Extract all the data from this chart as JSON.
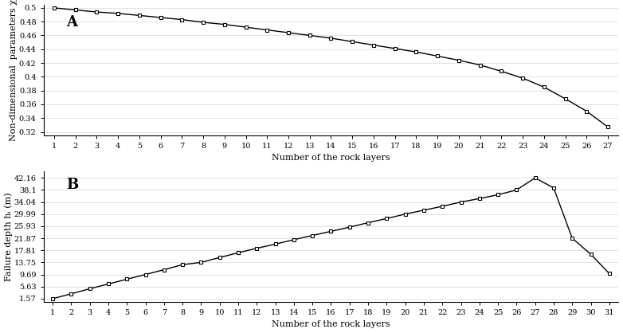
{
  "chart_A": {
    "label": "A",
    "x": [
      1,
      2,
      3,
      4,
      5,
      6,
      7,
      8,
      9,
      10,
      11,
      12,
      13,
      14,
      15,
      16,
      17,
      18,
      19,
      20,
      21,
      22,
      23,
      24,
      25,
      26,
      27
    ],
    "y": [
      0.5,
      0.497,
      0.494,
      0.492,
      0.489,
      0.486,
      0.483,
      0.479,
      0.476,
      0.472,
      0.468,
      0.464,
      0.46,
      0.456,
      0.451,
      0.446,
      0.441,
      0.436,
      0.43,
      0.424,
      0.417,
      0.408,
      0.398,
      0.385,
      0.368,
      0.35,
      0.327
    ],
    "xlabel": "Number of the rock layers",
    "ylabel": "Non-dimensional  parameters χ",
    "ytick_vals": [
      0.32,
      0.34,
      0.36,
      0.38,
      0.4,
      0.42,
      0.44,
      0.46,
      0.48,
      0.5
    ],
    "ytick_labels": [
      "0.32",
      "0.34",
      "0.36",
      "0.38",
      "0.4",
      "0.42",
      "0.44",
      "0.46",
      "0.48",
      "0.5"
    ],
    "ylim": [
      0.315,
      0.505
    ],
    "xticks": [
      1,
      2,
      3,
      4,
      5,
      6,
      7,
      8,
      9,
      10,
      11,
      12,
      13,
      14,
      15,
      16,
      17,
      18,
      19,
      20,
      21,
      22,
      23,
      24,
      25,
      26,
      27
    ],
    "xlim": [
      0.5,
      27.5
    ]
  },
  "chart_B": {
    "label": "B",
    "x": [
      1,
      2,
      3,
      4,
      5,
      6,
      7,
      8,
      9,
      10,
      11,
      12,
      13,
      14,
      15,
      16,
      17,
      18,
      19,
      20,
      21,
      22,
      23,
      24,
      25,
      26,
      27,
      28,
      29,
      30,
      31
    ],
    "y": [
      1.57,
      3.2,
      4.9,
      6.5,
      8.1,
      9.69,
      11.3,
      13.0,
      13.75,
      15.4,
      17.0,
      18.5,
      19.9,
      21.4,
      22.8,
      24.2,
      25.6,
      27.1,
      28.5,
      29.99,
      31.3,
      32.6,
      34.04,
      35.2,
      36.5,
      38.1,
      42.16,
      38.8,
      21.87,
      16.5,
      10.0
    ],
    "xlabel": "Number of the rock layers",
    "ylabel": "Failure depth hᵢ (m)",
    "ytick_vals": [
      1.57,
      5.63,
      9.69,
      13.75,
      17.81,
      21.87,
      25.93,
      29.99,
      34.04,
      38.1,
      42.16
    ],
    "ytick_labels": [
      "1.57",
      "5.63",
      "9.69",
      "13.75",
      "17.81",
      "21.87",
      "25.93",
      "29.99",
      "34.04",
      "38.1",
      "42.16"
    ],
    "ylim": [
      0.5,
      44.5
    ],
    "xticks": [
      1,
      2,
      3,
      4,
      5,
      6,
      7,
      8,
      9,
      10,
      11,
      12,
      13,
      14,
      15,
      16,
      17,
      18,
      19,
      20,
      21,
      22,
      23,
      24,
      25,
      26,
      27,
      28,
      29,
      30,
      31
    ],
    "xlim": [
      0.5,
      31.5
    ]
  },
  "line_color": "#000000",
  "marker": "s",
  "markersize": 3.5,
  "linewidth": 1.0,
  "font_family": "serif",
  "tick_labelsize": 7.0,
  "axis_labelsize": 8.0,
  "label_fontsize": 13,
  "background_color": "#ffffff"
}
